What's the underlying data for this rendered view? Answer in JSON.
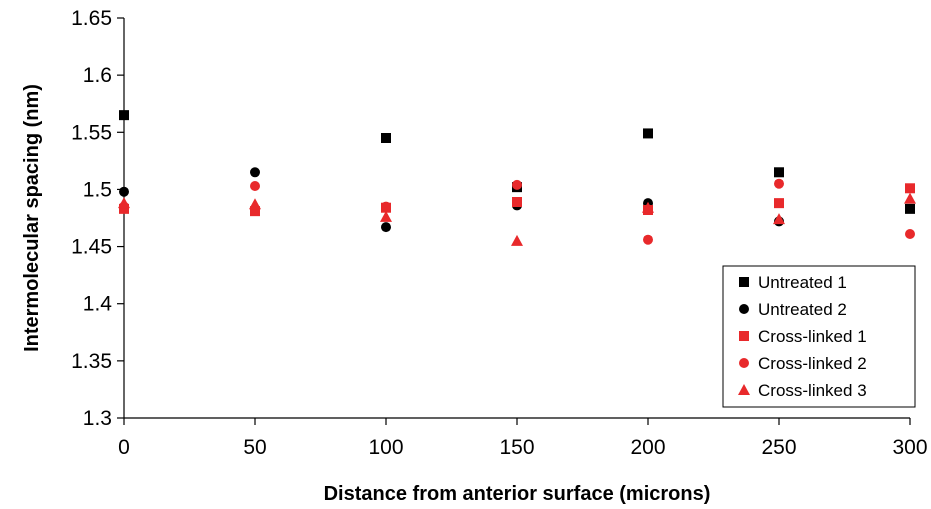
{
  "chart_data": {
    "type": "scatter",
    "title": "",
    "xlabel": "Distance from anterior surface (microns)",
    "ylabel": "Intermolecular spacing (nm)",
    "xlim": [
      0,
      300
    ],
    "ylim": [
      1.3,
      1.65
    ],
    "x_ticks": [
      "0",
      "50",
      "100",
      "150",
      "200",
      "250",
      "300"
    ],
    "y_ticks": [
      "1.3",
      "1.35",
      "1.4",
      "1.45",
      "1.5",
      "1.55",
      "1.6",
      "1.65"
    ],
    "grid": false,
    "legend_position": "bottom-right",
    "x": [
      0,
      50,
      100,
      150,
      200,
      250,
      300
    ],
    "series": [
      {
        "name": "Untreated 1",
        "marker": "square",
        "color": "#000000",
        "values": [
          1.565,
          null,
          1.545,
          1.502,
          1.549,
          1.515,
          1.483
        ]
      },
      {
        "name": "Untreated 2",
        "marker": "circle",
        "color": "#000000",
        "values": [
          1.498,
          1.515,
          1.467,
          1.486,
          1.488,
          1.472,
          null
        ]
      },
      {
        "name": "Cross-linked 1",
        "marker": "square",
        "color": "#e8292b",
        "values": [
          1.483,
          1.481,
          1.484,
          1.489,
          1.482,
          1.488,
          1.501
        ]
      },
      {
        "name": "Cross-linked 2",
        "marker": "circle",
        "color": "#e8292b",
        "values": [
          1.485,
          1.503,
          1.485,
          1.504,
          1.456,
          1.505,
          1.461
        ]
      },
      {
        "name": "Cross-linked 3",
        "marker": "triangle",
        "color": "#e8292b",
        "values": [
          1.488,
          1.487,
          1.476,
          1.455,
          1.484,
          1.474,
          1.492
        ]
      }
    ]
  }
}
